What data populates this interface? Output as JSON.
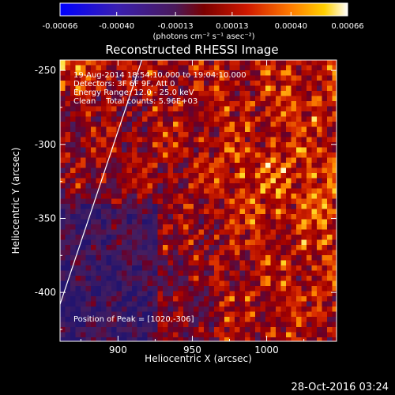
{
  "colorbar": {
    "tick_labels": [
      "-0.00066",
      "-0.00040",
      "-0.00013",
      "0.00013",
      "0.00040",
      "0.00066"
    ],
    "tick_values": [
      -0.00066,
      -0.0004,
      -0.00013,
      0.00013,
      0.0004,
      0.00066
    ],
    "range": [
      -0.00066,
      0.00066
    ],
    "units_label": "(photons cm⁻² s⁻¹ asec⁻²)",
    "colors": [
      "#0000ff",
      "#3a1fb0",
      "#5a2a8c",
      "#7a0000",
      "#d01800",
      "#ff7a00",
      "#ffd000",
      "#ffffff"
    ]
  },
  "chart_data": {
    "type": "heatmap",
    "title": "Reconstructed RHESSI Image",
    "xlabel": "Heliocentric X (arcsec)",
    "ylabel": "Heliocentric Y (arcsec)",
    "xlim": [
      861,
      1047
    ],
    "ylim": [
      -433,
      -243
    ],
    "xticks": [
      900,
      950,
      1000
    ],
    "yticks": [
      -250,
      -300,
      -350,
      -400
    ],
    "annotations": {
      "time_range": "19-Aug-2014 18:54:10.000 to 19:04:10.000",
      "detectors": "Detectors: 3F 6F 9F, Att 0",
      "energy_range": "Energy Range: 12.0 - 25.0 keV",
      "method": "Clean    Total counts: 5.96E+03",
      "peak": "Position of Peak = [1020,-306]"
    },
    "peak": [
      1020,
      -306
    ],
    "limb_line": [
      [
        861,
        -408
      ],
      [
        916,
        -243
      ]
    ]
  },
  "footer": {
    "timestamp": "28-Oct-2016 03:24"
  }
}
